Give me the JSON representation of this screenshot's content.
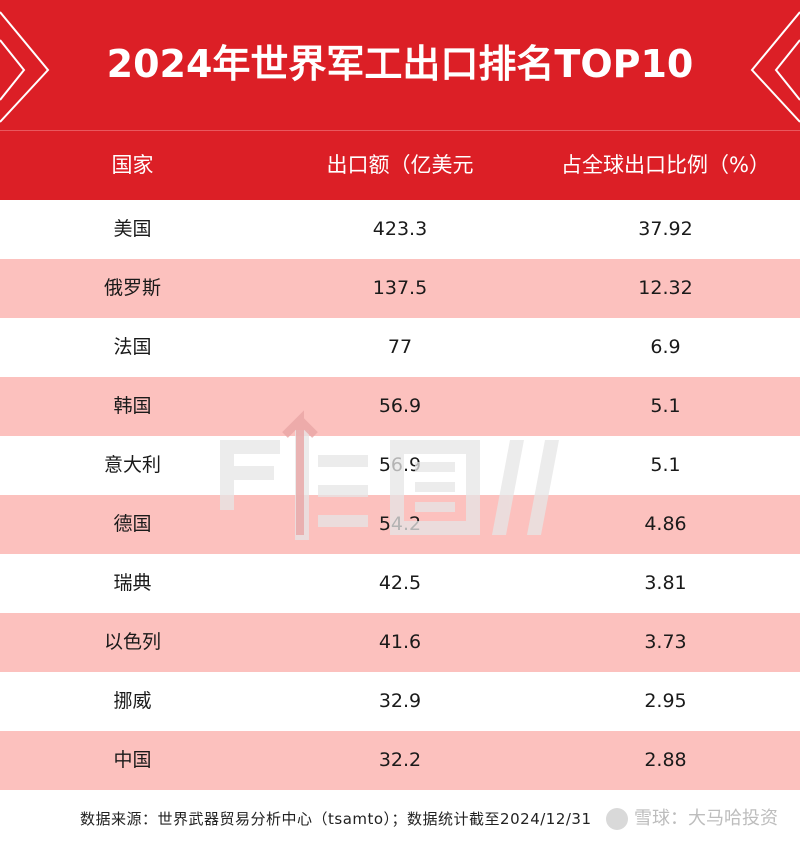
{
  "title": "2024年世界军工出口排名TOP10",
  "columns": [
    "国家",
    "出口额（亿美元",
    "占全球出口比例（%）"
  ],
  "rows": [
    {
      "country": "美国",
      "export": "423.3",
      "share": "37.92"
    },
    {
      "country": "俄罗斯",
      "export": "137.5",
      "share": "12.32"
    },
    {
      "country": "法国",
      "export": "77",
      "share": "6.9"
    },
    {
      "country": "韩国",
      "export": "56.9",
      "share": "5.1"
    },
    {
      "country": "意大利",
      "export": "56.9",
      "share": "5.1"
    },
    {
      "country": "德国",
      "export": "54.2",
      "share": "4.86"
    },
    {
      "country": "瑞典",
      "export": "42.5",
      "share": "3.81"
    },
    {
      "country": "以色列",
      "export": "41.6",
      "share": "3.73"
    },
    {
      "country": "挪威",
      "export": "32.9",
      "share": "2.95"
    },
    {
      "country": "中国",
      "export": "32.2",
      "share": "2.88"
    }
  ],
  "footnote": "数据来源：世界武器贸易分析中心（tsamto）；数据统计截至2024/12/31",
  "credit": "雪球：大马哈投资",
  "colors": {
    "brand_red": "#dc1f26",
    "row_pink": "#fcc1be"
  },
  "chart_data": {
    "type": "table",
    "title": "2024年世界军工出口排名TOP10",
    "columns": [
      "国家",
      "出口额（亿美元",
      "占全球出口比例（%）"
    ],
    "categories": [
      "美国",
      "俄罗斯",
      "法国",
      "韩国",
      "意大利",
      "德国",
      "瑞典",
      "以色列",
      "挪威",
      "中国"
    ],
    "series": [
      {
        "name": "出口额（亿美元",
        "values": [
          423.3,
          137.5,
          77,
          56.9,
          56.9,
          54.2,
          42.5,
          41.6,
          32.9,
          32.2
        ]
      },
      {
        "name": "占全球出口比例（%）",
        "values": [
          37.92,
          12.32,
          6.9,
          5.1,
          5.1,
          4.86,
          3.81,
          3.73,
          2.95,
          2.88
        ]
      }
    ]
  }
}
